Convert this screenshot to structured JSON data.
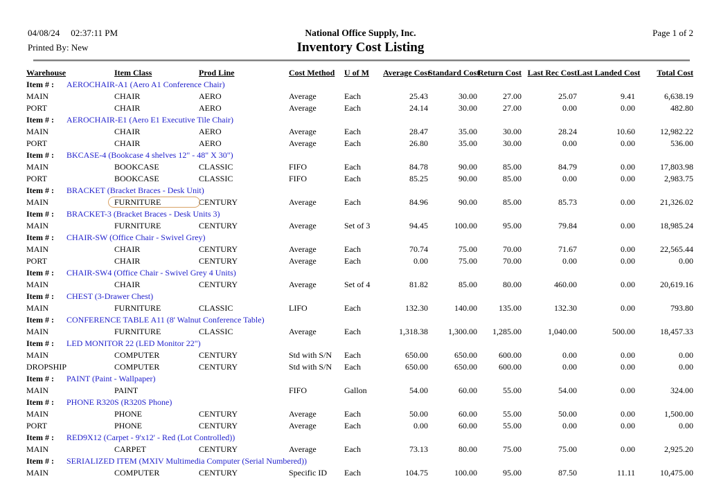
{
  "header": {
    "date": "04/08/24",
    "time": "02:37:11 PM",
    "printed_by_label": "Printed By:",
    "printed_by": "New",
    "company": "National Office Supply, Inc.",
    "title": "Inventory Cost Listing",
    "page": "Page 1 of 2"
  },
  "colors": {
    "item_link_blue": "#2222cc",
    "highlight_ring": "#d9a264"
  },
  "table": {
    "item_label": "Item # :",
    "columns": [
      "Warehouse",
      "Item Class",
      "Prod Line",
      "Cost Method",
      "U of M",
      "Average Cost",
      "Standard Cost",
      "Return Cost",
      "Last Rec Cost",
      "Last Landed Cost",
      "Total Cost"
    ],
    "highlight": {
      "group_index": 3,
      "row_index": 0,
      "column": "item_class"
    },
    "groups": [
      {
        "item": "AEROCHAIR-A1 (Aero A1 Conference Chair)",
        "rows": [
          {
            "warehouse": "MAIN",
            "item_class": "CHAIR",
            "prod_line": "AERO",
            "cost_method": "Average",
            "uom": "Each",
            "average_cost": "25.43",
            "standard_cost": "30.00",
            "return_cost": "27.00",
            "last_rec_cost": "25.07",
            "last_landed_cost": "9.41",
            "total_cost": "6,638.19"
          },
          {
            "warehouse": "PORT",
            "item_class": "CHAIR",
            "prod_line": "AERO",
            "cost_method": "Average",
            "uom": "Each",
            "average_cost": "24.14",
            "standard_cost": "30.00",
            "return_cost": "27.00",
            "last_rec_cost": "0.00",
            "last_landed_cost": "0.00",
            "total_cost": "482.80"
          }
        ]
      },
      {
        "item": "AEROCHAIR-E1 (Aero E1 Executive Tile Chair)",
        "rows": [
          {
            "warehouse": "MAIN",
            "item_class": "CHAIR",
            "prod_line": "AERO",
            "cost_method": "Average",
            "uom": "Each",
            "average_cost": "28.47",
            "standard_cost": "35.00",
            "return_cost": "30.00",
            "last_rec_cost": "28.24",
            "last_landed_cost": "10.60",
            "total_cost": "12,982.22"
          },
          {
            "warehouse": "PORT",
            "item_class": "CHAIR",
            "prod_line": "AERO",
            "cost_method": "Average",
            "uom": "Each",
            "average_cost": "26.80",
            "standard_cost": "35.00",
            "return_cost": "30.00",
            "last_rec_cost": "0.00",
            "last_landed_cost": "0.00",
            "total_cost": "536.00"
          }
        ]
      },
      {
        "item": "BKCASE-4 (Bookcase 4 shelves 12\" - 48\" X 30\")",
        "rows": [
          {
            "warehouse": "MAIN",
            "item_class": "BOOKCASE",
            "prod_line": "CLASSIC",
            "cost_method": "FIFO",
            "uom": "Each",
            "average_cost": "84.78",
            "standard_cost": "90.00",
            "return_cost": "85.00",
            "last_rec_cost": "84.79",
            "last_landed_cost": "0.00",
            "total_cost": "17,803.98"
          },
          {
            "warehouse": "PORT",
            "item_class": "BOOKCASE",
            "prod_line": "CLASSIC",
            "cost_method": "FIFO",
            "uom": "Each",
            "average_cost": "85.25",
            "standard_cost": "90.00",
            "return_cost": "85.00",
            "last_rec_cost": "0.00",
            "last_landed_cost": "0.00",
            "total_cost": "2,983.75"
          }
        ]
      },
      {
        "item": "BRACKET (Bracket Braces - Desk Unit)",
        "rows": [
          {
            "warehouse": "MAIN",
            "item_class": "FURNITURE",
            "prod_line": "CENTURY",
            "cost_method": "Average",
            "uom": "Each",
            "average_cost": "84.96",
            "standard_cost": "90.00",
            "return_cost": "85.00",
            "last_rec_cost": "85.73",
            "last_landed_cost": "0.00",
            "total_cost": "21,326.02"
          }
        ]
      },
      {
        "item": "BRACKET-3 (Bracket Braces - Desk Units 3)",
        "rows": [
          {
            "warehouse": "MAIN",
            "item_class": "FURNITURE",
            "prod_line": "CENTURY",
            "cost_method": "Average",
            "uom": "Set of 3",
            "average_cost": "94.45",
            "standard_cost": "100.00",
            "return_cost": "95.00",
            "last_rec_cost": "79.84",
            "last_landed_cost": "0.00",
            "total_cost": "18,985.24"
          }
        ]
      },
      {
        "item": "CHAIR-SW (Office Chair - Swivel Grey)",
        "rows": [
          {
            "warehouse": "MAIN",
            "item_class": "CHAIR",
            "prod_line": "CENTURY",
            "cost_method": "Average",
            "uom": "Each",
            "average_cost": "70.74",
            "standard_cost": "75.00",
            "return_cost": "70.00",
            "last_rec_cost": "71.67",
            "last_landed_cost": "0.00",
            "total_cost": "22,565.44"
          },
          {
            "warehouse": "PORT",
            "item_class": "CHAIR",
            "prod_line": "CENTURY",
            "cost_method": "Average",
            "uom": "Each",
            "average_cost": "0.00",
            "standard_cost": "75.00",
            "return_cost": "70.00",
            "last_rec_cost": "0.00",
            "last_landed_cost": "0.00",
            "total_cost": "0.00"
          }
        ]
      },
      {
        "item": "CHAIR-SW4 (Office Chair - Swivel Grey 4 Units)",
        "rows": [
          {
            "warehouse": "MAIN",
            "item_class": "CHAIR",
            "prod_line": "CENTURY",
            "cost_method": "Average",
            "uom": "Set of 4",
            "average_cost": "81.82",
            "standard_cost": "85.00",
            "return_cost": "80.00",
            "last_rec_cost": "460.00",
            "last_landed_cost": "0.00",
            "total_cost": "20,619.16"
          }
        ]
      },
      {
        "item": "CHEST (3-Drawer Chest)",
        "rows": [
          {
            "warehouse": "MAIN",
            "item_class": "FURNITURE",
            "prod_line": "CLASSIC",
            "cost_method": "LIFO",
            "uom": "Each",
            "average_cost": "132.30",
            "standard_cost": "140.00",
            "return_cost": "135.00",
            "last_rec_cost": "132.30",
            "last_landed_cost": "0.00",
            "total_cost": "793.80"
          }
        ]
      },
      {
        "item": "CONFERENCE TABLE A11 (8' Walnut Conference Table)",
        "rows": [
          {
            "warehouse": "MAIN",
            "item_class": "FURNITURE",
            "prod_line": "CLASSIC",
            "cost_method": "Average",
            "uom": "Each",
            "average_cost": "1,318.38",
            "standard_cost": "1,300.00",
            "return_cost": "1,285.00",
            "last_rec_cost": "1,040.00",
            "last_landed_cost": "500.00",
            "total_cost": "18,457.33"
          }
        ]
      },
      {
        "item": "LED MONITOR 22 (LED Monitor 22\")",
        "rows": [
          {
            "warehouse": "MAIN",
            "item_class": "COMPUTER",
            "prod_line": "CENTURY",
            "cost_method": "Std with S/N",
            "uom": "Each",
            "average_cost": "650.00",
            "standard_cost": "650.00",
            "return_cost": "600.00",
            "last_rec_cost": "0.00",
            "last_landed_cost": "0.00",
            "total_cost": "0.00"
          },
          {
            "warehouse": "DROPSHIP",
            "item_class": "COMPUTER",
            "prod_line": "CENTURY",
            "cost_method": "Std with S/N",
            "uom": "Each",
            "average_cost": "650.00",
            "standard_cost": "650.00",
            "return_cost": "600.00",
            "last_rec_cost": "0.00",
            "last_landed_cost": "0.00",
            "total_cost": "0.00"
          }
        ]
      },
      {
        "item": "PAINT (Paint - Wallpaper)",
        "rows": [
          {
            "warehouse": "MAIN",
            "item_class": "PAINT",
            "prod_line": "",
            "cost_method": "FIFO",
            "uom": "Gallon",
            "average_cost": "54.00",
            "standard_cost": "60.00",
            "return_cost": "55.00",
            "last_rec_cost": "54.00",
            "last_landed_cost": "0.00",
            "total_cost": "324.00"
          }
        ]
      },
      {
        "item": "PHONE R320S (R320S Phone)",
        "rows": [
          {
            "warehouse": "MAIN",
            "item_class": "PHONE",
            "prod_line": "CENTURY",
            "cost_method": "Average",
            "uom": "Each",
            "average_cost": "50.00",
            "standard_cost": "60.00",
            "return_cost": "55.00",
            "last_rec_cost": "50.00",
            "last_landed_cost": "0.00",
            "total_cost": "1,500.00"
          },
          {
            "warehouse": "PORT",
            "item_class": "PHONE",
            "prod_line": "CENTURY",
            "cost_method": "Average",
            "uom": "Each",
            "average_cost": "0.00",
            "standard_cost": "60.00",
            "return_cost": "55.00",
            "last_rec_cost": "0.00",
            "last_landed_cost": "0.00",
            "total_cost": "0.00"
          }
        ]
      },
      {
        "item": "RED9X12 (Carpet - 9'x12' - Red (Lot Controlled))",
        "rows": [
          {
            "warehouse": "MAIN",
            "item_class": "CARPET",
            "prod_line": "CENTURY",
            "cost_method": "Average",
            "uom": "Each",
            "average_cost": "73.13",
            "standard_cost": "80.00",
            "return_cost": "75.00",
            "last_rec_cost": "75.00",
            "last_landed_cost": "0.00",
            "total_cost": "2,925.20"
          }
        ]
      },
      {
        "item": "SERIALIZED ITEM (MXIV Multimedia Computer (Serial Numbered))",
        "rows": [
          {
            "warehouse": "MAIN",
            "item_class": "COMPUTER",
            "prod_line": "CENTURY",
            "cost_method": "Specific ID",
            "uom": "Each",
            "average_cost": "104.75",
            "standard_cost": "100.00",
            "return_cost": "95.00",
            "last_rec_cost": "87.50",
            "last_landed_cost": "11.11",
            "total_cost": "10,475.00"
          }
        ]
      }
    ]
  }
}
